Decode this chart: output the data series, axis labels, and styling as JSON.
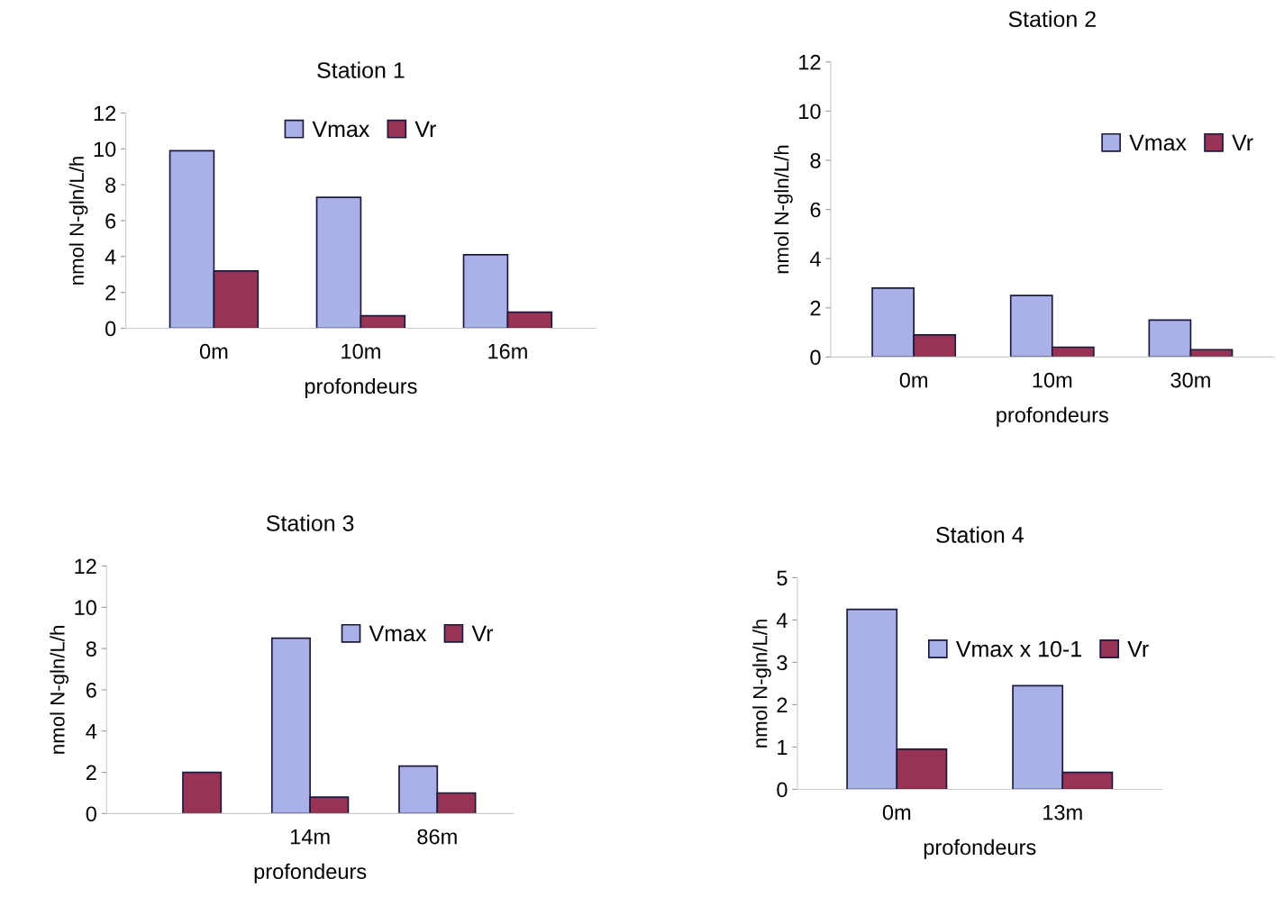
{
  "chart_data": [
    {
      "type": "bar",
      "title": "Station 1",
      "xlabel": "profondeurs",
      "ylabel": "nmol N-gln/L/h",
      "categories": [
        "0m",
        "10m",
        "16m"
      ],
      "series": [
        {
          "name": "Vmax",
          "color": "#aab0e8",
          "values": [
            9.9,
            7.3,
            4.1
          ]
        },
        {
          "name": "Vr",
          "color": "#993355",
          "values": [
            3.2,
            0.7,
            0.9
          ]
        }
      ],
      "ylim": [
        0,
        12
      ],
      "yticks": [
        0,
        2,
        4,
        6,
        8,
        10,
        12
      ],
      "legend": "top"
    },
    {
      "type": "bar",
      "title": "Station 2",
      "xlabel": "profondeurs",
      "ylabel": "nmol N-gln/L/h",
      "categories": [
        "0m",
        "10m",
        "30m"
      ],
      "series": [
        {
          "name": "Vmax",
          "color": "#aab0e8",
          "values": [
            2.8,
            2.5,
            1.5
          ]
        },
        {
          "name": "Vr",
          "color": "#993355",
          "values": [
            0.9,
            0.4,
            0.3
          ]
        }
      ],
      "ylim": [
        0,
        12
      ],
      "yticks": [
        0,
        2,
        4,
        6,
        8,
        10,
        12
      ],
      "legend": "right"
    },
    {
      "type": "bar",
      "title": "Station 3",
      "xlabel": "profondeurs",
      "ylabel": "nmol N-gln/L/h",
      "categories": [
        null,
        "14m",
        "86m"
      ],
      "series": [
        {
          "name": "Vmax",
          "color": "#aab0e8",
          "values": [
            null,
            8.5,
            2.3
          ]
        },
        {
          "name": "Vr",
          "color": "#993355",
          "values": [
            2.0,
            0.8,
            1.0
          ]
        }
      ],
      "ylim": [
        0,
        12
      ],
      "yticks": [
        0,
        2,
        4,
        6,
        8,
        10,
        12
      ],
      "legend": "right"
    },
    {
      "type": "bar",
      "title": "Station 4",
      "xlabel": "profondeurs",
      "ylabel": "nmol N-gln/L/h",
      "categories": [
        "0m",
        "13m"
      ],
      "series": [
        {
          "name": "Vmax x 10-1",
          "color": "#aab0e8",
          "values": [
            4.25,
            2.45
          ]
        },
        {
          "name": "Vr",
          "color": "#993355",
          "values": [
            0.95,
            0.4
          ]
        }
      ],
      "ylim": [
        0,
        5
      ],
      "yticks": [
        0,
        1,
        2,
        3,
        4,
        5
      ],
      "legend": "top right"
    }
  ]
}
